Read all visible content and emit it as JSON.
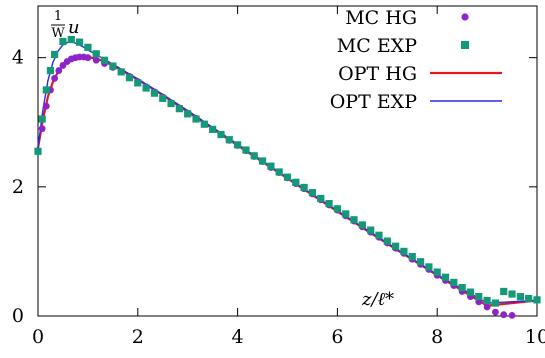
{
  "chart_data": {
    "type": "line",
    "xlabel": "z/ℓ*",
    "ylabel": "u",
    "ylabel_fraction": {
      "numerator": "1",
      "denominator": "W"
    },
    "xlim": [
      0,
      10
    ],
    "ylim": [
      0,
      4.8
    ],
    "x_ticks": [
      0,
      2,
      4,
      6,
      8,
      10
    ],
    "x_tick_labels": [
      "0",
      "2",
      "4",
      "6",
      "8",
      "10"
    ],
    "y_ticks": [
      0,
      2,
      4
    ],
    "y_tick_labels": [
      "0",
      "2",
      "4"
    ],
    "grid": false,
    "legend_position": "top-right",
    "series": [
      {
        "name": "MC HG",
        "style": "points",
        "marker": "circle",
        "color": "#8e24c8",
        "x": [
          0.0,
          0.083,
          0.167,
          0.25,
          0.333,
          0.417,
          0.5,
          0.583,
          0.667,
          0.75,
          0.833,
          0.917,
          1.0,
          1.167,
          1.333,
          1.5,
          1.667,
          1.833,
          2.0,
          2.167,
          2.333,
          2.5,
          2.667,
          2.833,
          3.0,
          3.167,
          3.333,
          3.5,
          3.667,
          3.833,
          4.0,
          4.167,
          4.333,
          4.5,
          4.667,
          4.833,
          5.0,
          5.167,
          5.333,
          5.5,
          5.667,
          5.833,
          6.0,
          6.167,
          6.333,
          6.5,
          6.667,
          6.833,
          7.0,
          7.167,
          7.333,
          7.5,
          7.667,
          7.833,
          8.0,
          8.167,
          8.333,
          8.5,
          8.667,
          8.833,
          9.0,
          9.167,
          9.333,
          9.5,
          9.667,
          9.833,
          10.0
        ],
        "y": [
          2.55,
          2.9,
          3.25,
          3.5,
          3.68,
          3.8,
          3.88,
          3.94,
          3.98,
          4.0,
          4.01,
          4.01,
          4.0,
          3.96,
          3.91,
          3.85,
          3.78,
          3.71,
          3.63,
          3.55,
          3.47,
          3.39,
          3.3,
          3.22,
          3.14,
          3.06,
          2.97,
          2.89,
          2.81,
          2.72,
          2.64,
          2.56,
          2.47,
          2.39,
          2.3,
          2.22,
          2.14,
          2.05,
          1.97,
          1.89,
          1.8,
          1.72,
          1.64,
          1.55,
          1.47,
          1.38,
          1.3,
          1.22,
          1.13,
          1.05,
          0.97,
          0.88,
          0.8,
          0.72,
          0.63,
          0.55,
          0.47,
          0.38,
          0.3,
          0.22,
          0.14,
          0.06,
          0.02,
          0.01,
          0.3,
          0.27,
          0.25
        ]
      },
      {
        "name": "MC EXP",
        "style": "points",
        "marker": "square",
        "color": "#139978",
        "x": [
          0.0,
          0.083,
          0.167,
          0.25,
          0.333,
          0.5,
          0.667,
          0.833,
          1.0,
          1.167,
          1.333,
          1.5,
          1.667,
          1.833,
          2.0,
          2.167,
          2.333,
          2.5,
          2.667,
          2.833,
          3.0,
          3.167,
          3.333,
          3.5,
          3.667,
          3.833,
          4.0,
          4.167,
          4.333,
          4.5,
          4.667,
          4.833,
          5.0,
          5.167,
          5.333,
          5.5,
          5.667,
          5.833,
          6.0,
          6.167,
          6.333,
          6.5,
          6.667,
          6.833,
          7.0,
          7.167,
          7.333,
          7.5,
          7.667,
          7.833,
          8.0,
          8.167,
          8.333,
          8.5,
          8.667,
          8.833,
          9.0,
          9.167,
          9.333,
          9.5,
          9.667,
          9.833,
          10.0
        ],
        "y": [
          2.55,
          3.05,
          3.5,
          3.8,
          4.05,
          4.25,
          4.28,
          4.24,
          4.16,
          4.06,
          3.96,
          3.87,
          3.78,
          3.69,
          3.61,
          3.53,
          3.45,
          3.37,
          3.29,
          3.21,
          3.13,
          3.05,
          2.97,
          2.89,
          2.81,
          2.73,
          2.65,
          2.57,
          2.48,
          2.4,
          2.32,
          2.23,
          2.15,
          2.07,
          1.99,
          1.91,
          1.82,
          1.74,
          1.66,
          1.58,
          1.49,
          1.41,
          1.33,
          1.25,
          1.16,
          1.08,
          1.0,
          0.92,
          0.84,
          0.76,
          0.68,
          0.6,
          0.52,
          0.44,
          0.37,
          0.3,
          0.24,
          0.2,
          0.38,
          0.34,
          0.3,
          0.27,
          0.25
        ]
      },
      {
        "name": "OPT HG",
        "style": "line",
        "color": "#e8161b",
        "x": [
          0.0,
          0.1,
          0.2,
          0.3,
          0.4,
          0.5,
          0.6,
          0.7,
          0.8,
          0.9,
          1.0,
          1.2,
          1.5,
          2.0,
          2.5,
          3.0,
          4.0,
          5.0,
          6.0,
          7.0,
          8.0,
          9.0,
          10.0
        ],
        "y": [
          2.6,
          3.05,
          3.4,
          3.63,
          3.78,
          3.88,
          3.95,
          3.99,
          4.01,
          4.02,
          4.01,
          3.98,
          3.88,
          3.66,
          3.42,
          3.16,
          2.64,
          2.13,
          1.62,
          1.12,
          0.63,
          0.16,
          0.24
        ]
      },
      {
        "name": "OPT EXP",
        "style": "line",
        "color": "#2a2ae8",
        "x": [
          0.0,
          0.1,
          0.2,
          0.3,
          0.4,
          0.5,
          0.6,
          0.7,
          0.8,
          0.9,
          1.0,
          1.2,
          1.5,
          2.0,
          2.5,
          3.0,
          4.0,
          5.0,
          6.0,
          7.0,
          8.0,
          9.0,
          10.0
        ],
        "y": [
          2.6,
          3.2,
          3.65,
          3.93,
          4.1,
          4.2,
          4.24,
          4.24,
          4.21,
          4.17,
          4.12,
          4.03,
          3.9,
          3.67,
          3.43,
          3.18,
          2.66,
          2.14,
          1.63,
          1.13,
          0.64,
          0.2,
          0.24
        ]
      }
    ]
  }
}
